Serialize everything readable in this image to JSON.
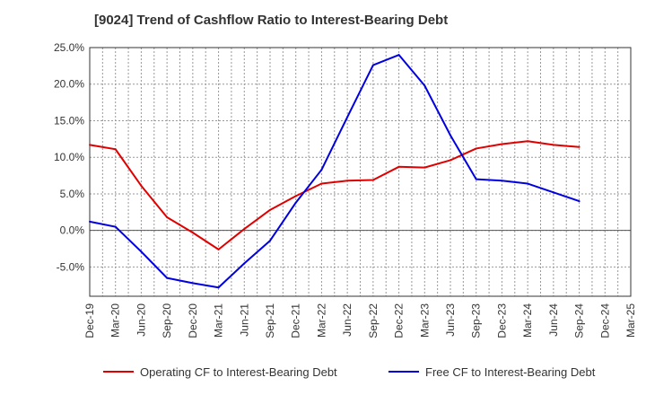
{
  "chart_data": {
    "type": "line",
    "title": "[9024]  Trend of Cashflow Ratio to Interest-Bearing Debt",
    "xlabel": "",
    "ylabel": "",
    "categories": [
      "Dec-19",
      "Mar-20",
      "Jun-20",
      "Sep-20",
      "Dec-20",
      "Mar-21",
      "Jun-21",
      "Sep-21",
      "Dec-21",
      "Mar-22",
      "Jun-22",
      "Sep-22",
      "Dec-22",
      "Mar-23",
      "Jun-23",
      "Sep-23",
      "Dec-23",
      "Mar-24",
      "Jun-24",
      "Sep-24",
      "Dec-24",
      "Mar-25"
    ],
    "y_ticks": [
      "25.0%",
      "20.0%",
      "15.0%",
      "10.0%",
      "5.0%",
      "0.0%",
      "-5.0%"
    ],
    "y_tick_values": [
      25,
      20,
      15,
      10,
      5,
      0,
      -5
    ],
    "ylim": [
      -9,
      25
    ],
    "grid": true,
    "legend_position": "bottom",
    "series": [
      {
        "name": "Operating CF to Interest-Bearing Debt",
        "color": "#e00000",
        "values": [
          11.7,
          11.1,
          6.1,
          1.8,
          -0.3,
          -2.6,
          0.2,
          2.8,
          4.7,
          6.4,
          6.8,
          6.9,
          8.7,
          8.6,
          9.6,
          11.2,
          11.8,
          12.2,
          11.7,
          11.4,
          null,
          null
        ]
      },
      {
        "name": "Free CF to Interest-Bearing Debt",
        "color": "#0000e0",
        "values": [
          1.2,
          0.5,
          -2.9,
          -6.5,
          -7.2,
          -7.8,
          -4.5,
          -1.4,
          3.8,
          8.3,
          15.5,
          22.6,
          24.0,
          19.8,
          13.0,
          7.0,
          6.8,
          6.4,
          5.2,
          4.0,
          null,
          null
        ]
      }
    ]
  }
}
